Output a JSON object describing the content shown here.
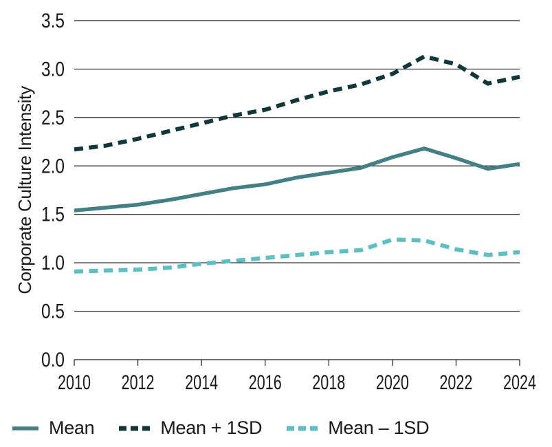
{
  "figure": {
    "background": "#ffffff",
    "text_color": "#1a1a1a",
    "grid_color": "#1a1a1a"
  },
  "chart_data": {
    "type": "line",
    "title": "",
    "xlabel": "",
    "ylabel": "Corporate Culture Intensity",
    "ylim": [
      0,
      3.5
    ],
    "ytick_interval": 0.5,
    "ytick_labels": [
      "0.0",
      "0.5",
      "1.0",
      "1.5",
      "2.0",
      "2.5",
      "3.0",
      "3.5"
    ],
    "x": [
      2010,
      2011,
      2012,
      2013,
      2014,
      2015,
      2016,
      2017,
      2018,
      2019,
      2020,
      2021,
      2022,
      2023,
      2024
    ],
    "xtick_labels": [
      "2010",
      "2012",
      "2014",
      "2016",
      "2018",
      "2020",
      "2022",
      "2024"
    ],
    "grid": "horizontal",
    "legend_position": "bottom",
    "series": [
      {
        "name": "Mean",
        "style": "solid",
        "color": "#428083",
        "values": [
          1.54,
          1.57,
          1.6,
          1.65,
          1.71,
          1.77,
          1.81,
          1.88,
          1.93,
          1.98,
          2.09,
          2.18,
          2.08,
          1.97,
          2.02
        ]
      },
      {
        "name": "Mean + 1SD",
        "style": "dashed",
        "color": "#123739",
        "values": [
          2.17,
          2.21,
          2.28,
          2.36,
          2.44,
          2.52,
          2.58,
          2.68,
          2.77,
          2.84,
          2.95,
          3.13,
          3.05,
          2.85,
          2.92
        ]
      },
      {
        "name": "Mean – 1SD",
        "style": "dashed",
        "color": "#5CBFC1",
        "values": [
          0.91,
          0.92,
          0.93,
          0.95,
          0.99,
          1.02,
          1.05,
          1.08,
          1.11,
          1.13,
          1.24,
          1.23,
          1.14,
          1.08,
          1.11
        ]
      }
    ]
  }
}
